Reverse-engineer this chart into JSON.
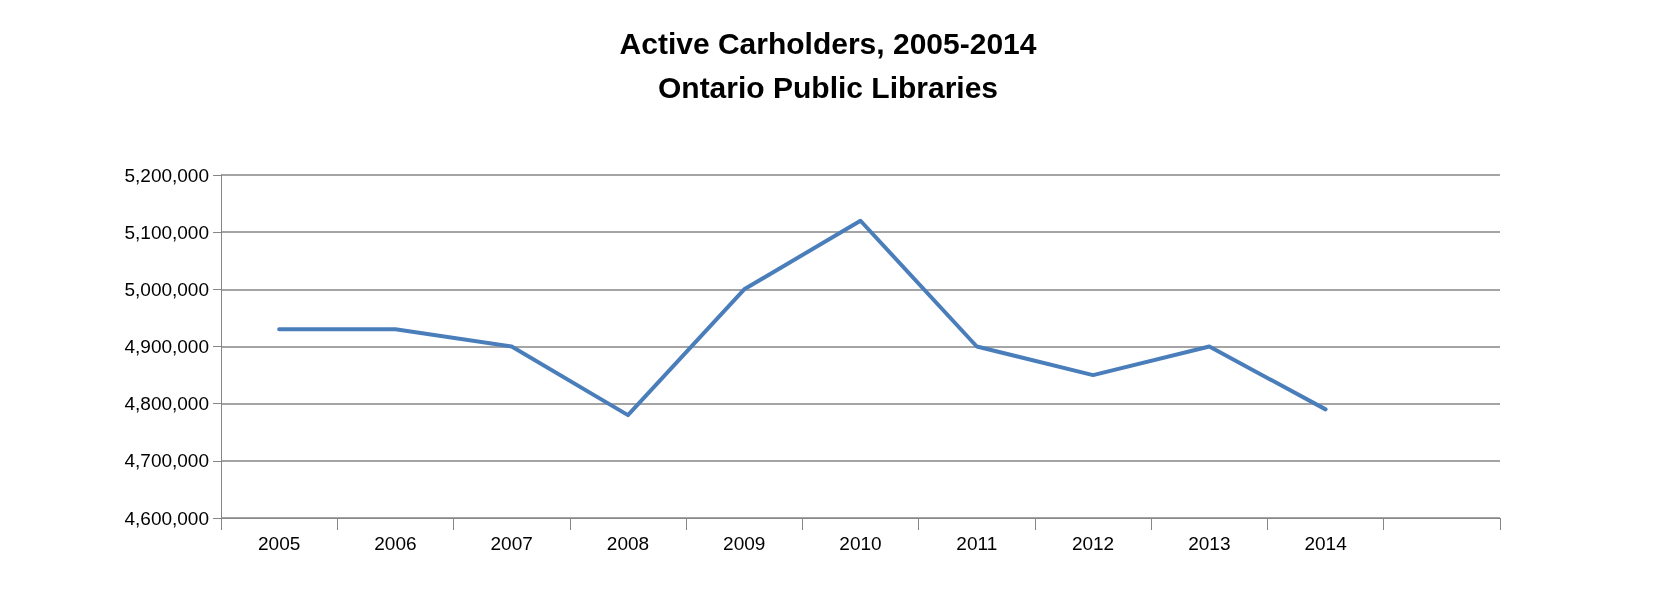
{
  "chart_data": {
    "type": "line",
    "title": "Active Carholders, 2005-2014\nOntario Public Libraries",
    "categories": [
      "2005",
      "2006",
      "2007",
      "2008",
      "2009",
      "2010",
      "2011",
      "2012",
      "2013",
      "2014",
      null
    ],
    "series": [
      {
        "color": "#4a7ebb",
        "values": [
          4930000,
          4930000,
          4900000,
          4780000,
          5000000,
          5120000,
          4900000,
          4850000,
          4900000,
          4790000,
          null
        ]
      }
    ],
    "ylim": [
      4600000,
      5200000
    ],
    "yticks": [
      {
        "value": 4600000,
        "label": "4,600,000"
      },
      {
        "value": 4700000,
        "label": "4,700,000"
      },
      {
        "value": 4800000,
        "label": "4,800,000"
      },
      {
        "value": 4900000,
        "label": "4,900,000"
      },
      {
        "value": 5000000,
        "label": "5,000,000"
      },
      {
        "value": 5100000,
        "label": "5,100,000"
      },
      {
        "value": 5200000,
        "label": "5,200,000"
      }
    ],
    "grid": "y",
    "marker": "none",
    "line_style": "solid"
  }
}
